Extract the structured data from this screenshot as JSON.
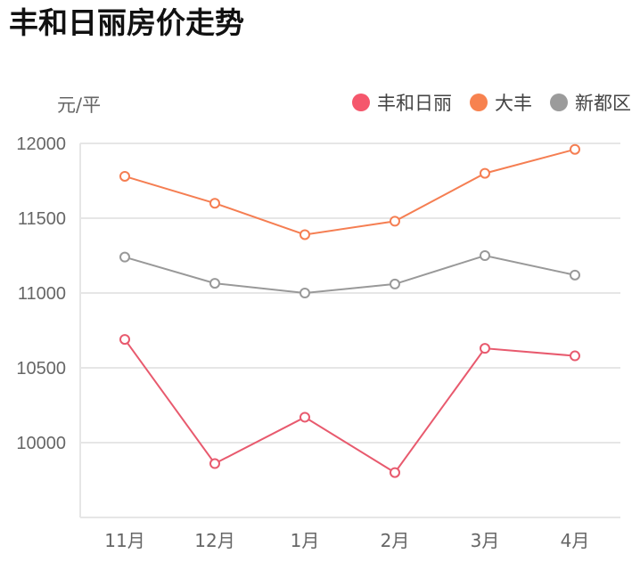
{
  "title": "丰和日丽房价走势",
  "unit_label": "元/平",
  "legend": [
    {
      "name": "丰和日丽",
      "color": "#F5576C"
    },
    {
      "name": "大丰",
      "color": "#F7824F"
    },
    {
      "name": "新都区",
      "color": "#9B9B9B"
    }
  ],
  "chart_data": {
    "type": "line",
    "title": "丰和日丽房价走势",
    "xlabel": "",
    "ylabel": "元/平",
    "categories": [
      "11月",
      "12月",
      "1月",
      "2月",
      "3月",
      "4月"
    ],
    "ylim": [
      9500,
      12000
    ],
    "yticks": [
      10000,
      10500,
      11000,
      11500,
      12000
    ],
    "grid": true,
    "legend_position": "top-right",
    "series": [
      {
        "name": "丰和日丽",
        "color": "#E85A6E",
        "values": [
          10690,
          9860,
          10170,
          9800,
          10630,
          10580
        ]
      },
      {
        "name": "大丰",
        "color": "#F57E52",
        "values": [
          11780,
          11600,
          11390,
          11480,
          11800,
          11960
        ]
      },
      {
        "name": "新都区",
        "color": "#999999",
        "values": [
          11240,
          11065,
          11000,
          11060,
          11250,
          11120
        ]
      }
    ]
  }
}
